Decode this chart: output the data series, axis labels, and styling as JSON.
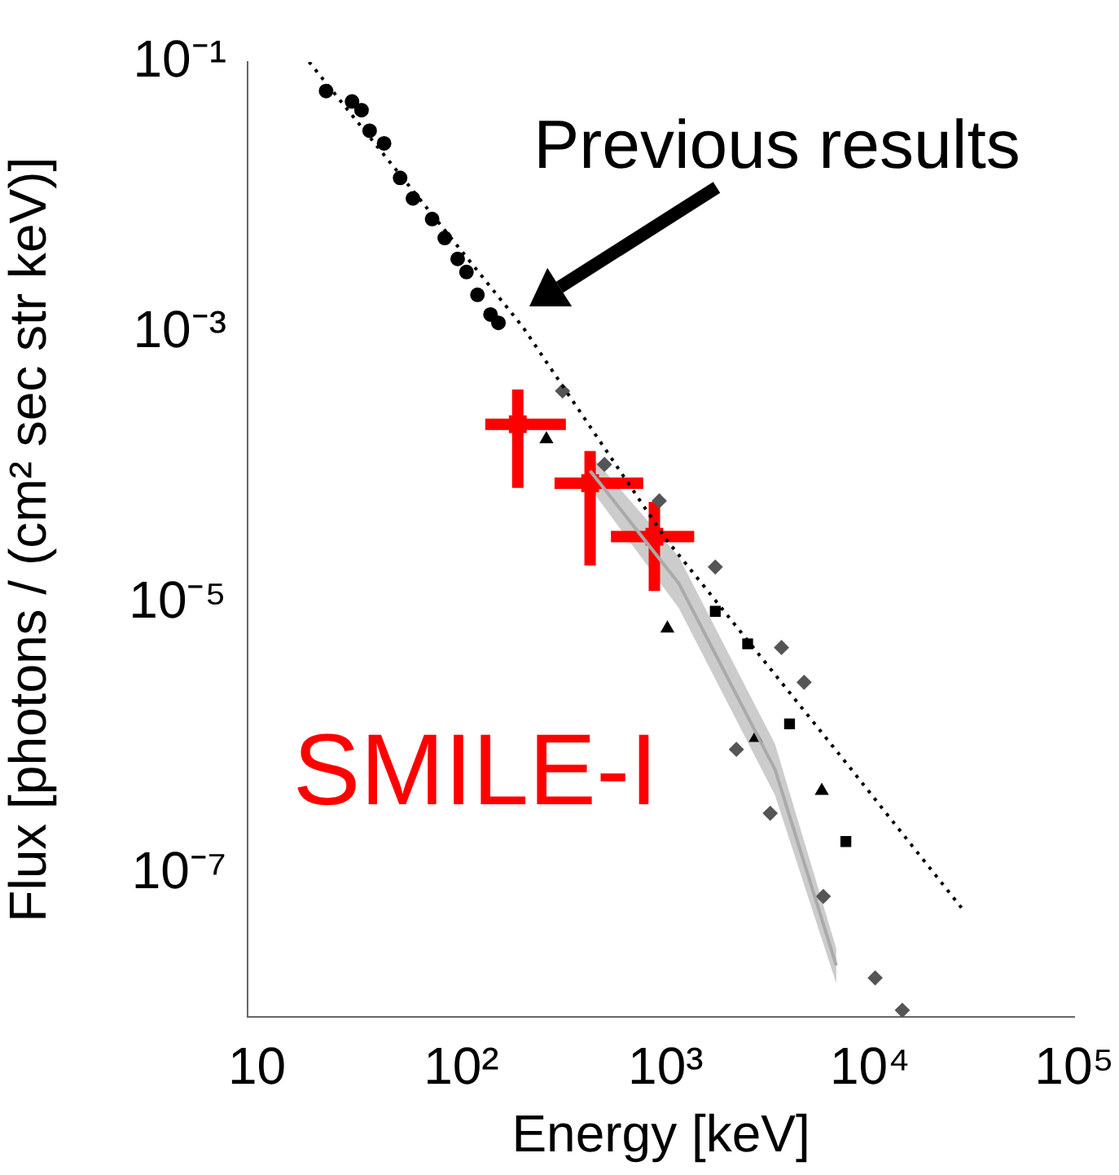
{
  "chart_data": {
    "type": "scatter",
    "xlabel": "Energy [keV]",
    "ylabel": "Flux [photons / (cm² sec str keV)]",
    "log": "xy",
    "grid": false,
    "legend": false,
    "xlim": [
      9,
      100000
    ],
    "xticks": [
      10,
      {
        "value": 100,
        "label": "10²"
      },
      {
        "value": 1000,
        "label": "10³"
      },
      {
        "value": 10000,
        "label": "10⁴"
      },
      {
        "value": 100000,
        "label": "10⁵"
      }
    ],
    "ylim": [
      8.7e-09,
      0.1
    ],
    "yticks": [
      {
        "value": 0.1,
        "label": "10⁻¹"
      },
      {
        "value": 0.001,
        "label": "10⁻³"
      },
      {
        "value": 1e-05,
        "label": "10⁻⁵"
      },
      {
        "value": 1e-07,
        "label": "10⁻⁷"
      }
    ],
    "annotations": [
      "Previous results"
    ],
    "series": [
      {
        "type": "line",
        "color": "#aaaaaa",
        "marker": "none",
        "x": [
          427,
          1160,
          3430,
          6840
        ],
        "values": [
          9.5e-05,
          1.4e-05,
          5.9e-07,
          2.1e-08
        ],
        "lower": [
          7.1e-05,
          9.2e-06,
          3.8e-07,
          1.55e-08
        ],
        "upper": [
          0.000126,
          2.2e-05,
          9.1e-07,
          2.8e-08
        ]
      },
      {
        "type": "line",
        "color": "#000000",
        "marker": "none",
        "line_style": "dotted",
        "x": [
          18,
          200,
          1000,
          7770,
          28600
        ],
        "values": [
          0.1,
          0.0011,
          3e-05,
          6.4e-07,
          5.4e-08
        ]
      },
      {
        "color": "#000000",
        "marker": "circle",
        "x": [
          21.8,
          29.2,
          32.5,
          35.6,
          41.9,
          50.2,
          58,
          72,
          83,
          96,
          106,
          120,
          139,
          152
        ],
        "values": [
          0.061,
          0.051,
          0.044,
          0.031,
          0.025,
          0.0139,
          0.0098,
          0.0069,
          0.005,
          0.0035,
          0.0028,
          0.0019,
          0.00136,
          0.00118
        ]
      },
      {
        "color": "#555555",
        "marker": "diamond",
        "x": [
          313,
          502,
          931,
          1750,
          3690,
          4760,
          2220,
          3250,
          5910,
          10600,
          14400
        ],
        "values": [
          0.00037,
          0.000106,
          5.7e-05,
          1.85e-05,
          4.7e-06,
          2.6e-06,
          8.3e-07,
          2.8e-07,
          6.8e-08,
          1.7e-08,
          9.8e-09
        ]
      },
      {
        "color": "#000000",
        "marker": "square",
        "x": [
          1750,
          2520,
          4040,
          7620
        ],
        "values": [
          8.7e-06,
          5e-06,
          1.28e-06,
          1.73e-07
        ]
      },
      {
        "color": "#000000",
        "marker": "triangle",
        "x": [
          261,
          1020,
          2760,
          5810
        ],
        "values": [
          0.000163,
          6.5e-06,
          1.01e-06,
          4.1e-07
        ]
      },
      {
        "name": "SMILE-I",
        "color": "#ff0000",
        "marker": "square",
        "x": [
          189,
          427,
          881
        ],
        "values": [
          0.00021,
          7.7e-05,
          3.1e-05
        ],
        "errors": [
          [
            7.1e-05,
            0.00038
          ],
          [
            1.9e-05,
            0.000133
          ],
          [
            1.23e-05,
            5.6e-05
          ]
        ],
        "xerrors": [
          [
            131,
            325
          ],
          [
            286,
            777
          ],
          [
            540,
            1380
          ]
        ]
      }
    ]
  }
}
